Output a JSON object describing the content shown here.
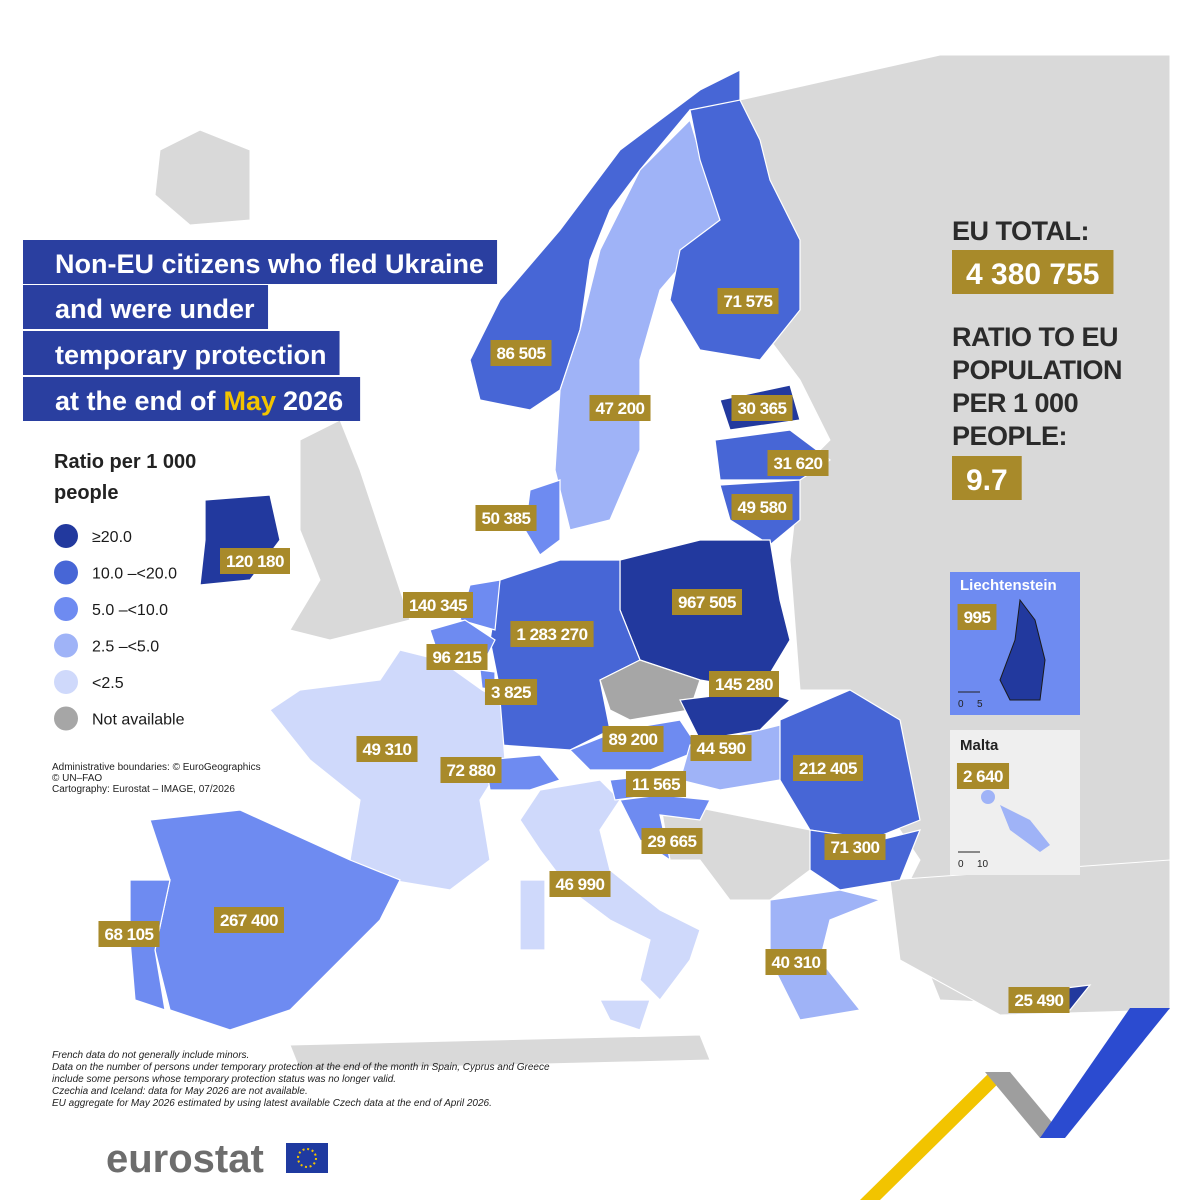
{
  "title": {
    "lines": [
      "Non-EU citizens who fled Ukraine",
      "and were under",
      "temporary protection"
    ],
    "last_line_prefix": "at the end of",
    "month": "May",
    "year": "2026"
  },
  "legend": {
    "title_lines": [
      "Ratio per 1 000",
      "people"
    ],
    "items": [
      {
        "label": "≥20.0",
        "color": "#22399e"
      },
      {
        "label": "10.0 –<20.0",
        "color": "#4766d6"
      },
      {
        "label": "5.0 –<10.0",
        "color": "#6e8bf1"
      },
      {
        "label": "2.5 –<5.0",
        "color": "#9fb3f7"
      },
      {
        "label": "<2.5",
        "color": "#cfd9fb"
      },
      {
        "label": "Not available",
        "color": "#a6a6a6"
      }
    ]
  },
  "credits": [
    "Administrative boundaries: © EuroGeographics",
    "© UN–FAO",
    "Cartography: Eurostat – IMAGE, 07/2026"
  ],
  "notes": [
    "French data do not generally include minors.",
    "Data on the number of persons under temporary protection at the end of the month in Spain, Cyprus and Greece",
    "include some persons whose temporary protection status was no longer valid.",
    "Czechia and Iceland: data for May 2026 are not available.",
    "EU aggregate for May 2026 estimated by using latest available Czech data at the end of April 2026."
  ],
  "eu_total": {
    "label": "EU TOTAL:",
    "value": "4 380 755"
  },
  "ratio": {
    "label_lines": [
      "RATIO TO EU",
      "POPULATION",
      "PER 1 000",
      "PEOPLE:"
    ],
    "value": "9.7"
  },
  "map_labels": [
    "86 505",
    "71 575",
    "47 200",
    "30 365",
    "31 620",
    "49 580",
    "50 385",
    "120 180",
    "140 345",
    "967 505",
    "1 283 270",
    "96 215",
    "145 280",
    "3 825",
    "49 310",
    "89 200",
    "44 590",
    "212 405",
    "72 880",
    "11 565",
    "29 665",
    "71 300",
    "46 990",
    "267 400",
    "68 105",
    "40 310",
    "25 490"
  ],
  "insets": [
    {
      "name": "Liechtenstein",
      "value": "995",
      "scale": [
        "0",
        "5"
      ]
    },
    {
      "name": "Malta",
      "value": "2 640",
      "scale": [
        "0",
        "10"
      ]
    }
  ],
  "logo": "eurostat"
}
